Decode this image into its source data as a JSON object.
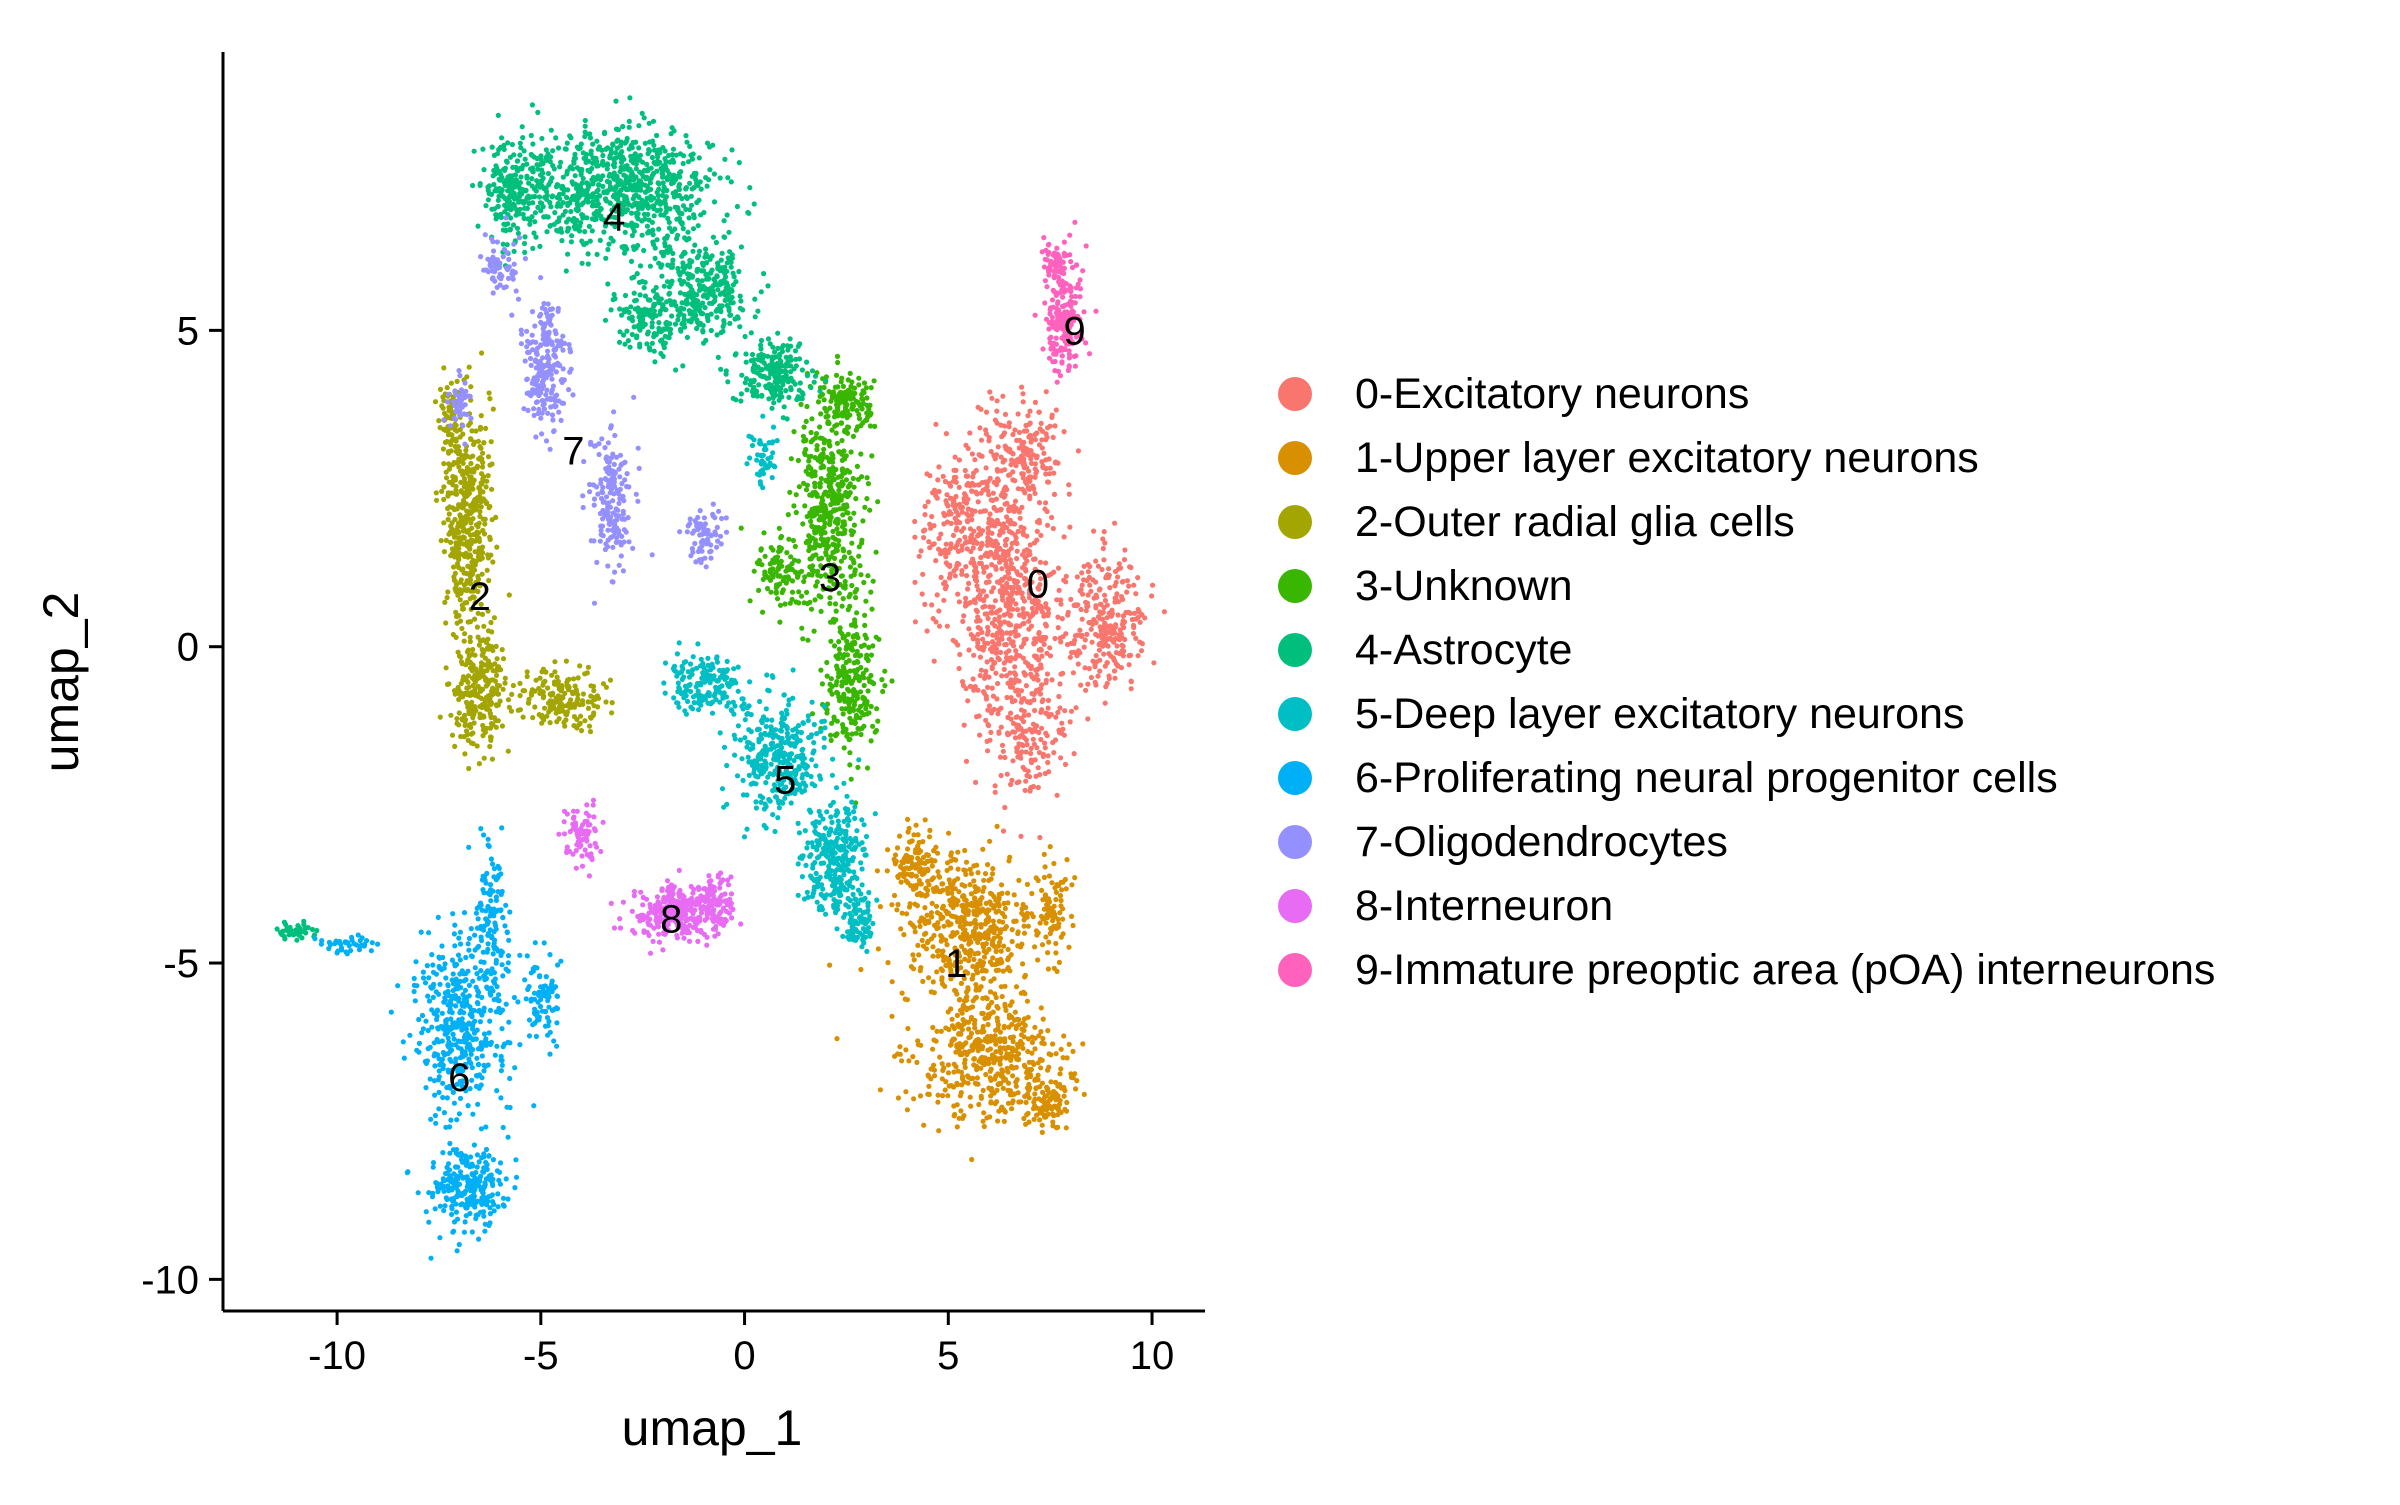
{
  "chart_data": {
    "type": "scatter",
    "title": "",
    "xlabel": "umap_1",
    "ylabel": "umap_2",
    "xlim": [
      -12.8,
      11.3
    ],
    "ylim": [
      -10.5,
      9.4
    ],
    "x_ticks": [
      -10,
      -5,
      0,
      5,
      10
    ],
    "x_tick_labels": [
      "-10",
      "-5",
      "0",
      "5",
      "10"
    ],
    "y_ticks": [
      -10,
      -5,
      0,
      5
    ],
    "y_tick_labels": [
      "-10",
      "-5",
      "0",
      "5"
    ],
    "grid": false,
    "legend_position": "right",
    "clusters": [
      {
        "id": "0",
        "label": "0-Excitatory neurons",
        "color": "#F8766D",
        "label_x": 7.2,
        "label_y": 1.0,
        "blobs": [
          [
            6.5,
            0.7,
            1.3,
            2.0,
            650
          ],
          [
            8.9,
            0.4,
            0.9,
            1.0,
            260
          ],
          [
            5.4,
            1.9,
            1.0,
            1.2,
            240
          ],
          [
            6.9,
            3.1,
            0.9,
            0.7,
            160
          ],
          [
            7.0,
            -1.5,
            0.8,
            0.9,
            130
          ]
        ]
      },
      {
        "id": "1",
        "label": "1-Upper layer excitatory neurons",
        "color": "#D89000",
        "label_x": 5.2,
        "label_y": -5.0,
        "blobs": [
          [
            5.5,
            -4.5,
            1.5,
            1.1,
            500
          ],
          [
            6.0,
            -6.5,
            1.6,
            0.9,
            450
          ],
          [
            4.2,
            -3.4,
            0.6,
            0.5,
            120
          ],
          [
            7.5,
            -7.2,
            0.5,
            0.4,
            100
          ],
          [
            7.5,
            -4.1,
            0.4,
            0.8,
            80
          ]
        ]
      },
      {
        "id": "2",
        "label": "2-Outer radial glia cells",
        "color": "#A3A500",
        "label_x": -6.5,
        "label_y": 0.8,
        "blobs": [
          [
            -6.8,
            2.0,
            0.5,
            1.6,
            420
          ],
          [
            -6.5,
            -0.7,
            0.6,
            0.8,
            260
          ],
          [
            -7.2,
            3.6,
            0.25,
            0.6,
            80
          ],
          [
            -4.5,
            -0.8,
            1.0,
            0.4,
            180
          ]
        ]
      },
      {
        "id": "3",
        "label": "3-Unknown",
        "color": "#39B600",
        "label_x": 2.1,
        "label_y": 1.1,
        "blobs": [
          [
            2.1,
            2.2,
            0.8,
            1.4,
            450
          ],
          [
            2.6,
            -0.6,
            0.6,
            1.0,
            240
          ],
          [
            2.5,
            3.9,
            0.6,
            0.4,
            130
          ],
          [
            0.9,
            1.2,
            0.6,
            0.5,
            100
          ]
        ]
      },
      {
        "id": "4",
        "label": "4-Astrocyte",
        "color": "#00BF7D",
        "label_x": -3.2,
        "label_y": 6.8,
        "blobs": [
          [
            -3.0,
            7.2,
            2.0,
            0.9,
            800
          ],
          [
            -5.7,
            7.2,
            0.7,
            0.8,
            220
          ],
          [
            -1.0,
            5.6,
            1.0,
            0.7,
            280
          ],
          [
            0.7,
            4.3,
            0.8,
            0.5,
            200
          ],
          [
            -2.3,
            5.2,
            0.8,
            0.5,
            150
          ],
          [
            -11.0,
            -4.5,
            0.5,
            0.12,
            40
          ]
        ]
      },
      {
        "id": "5",
        "label": "5-Deep layer excitatory neurons",
        "color": "#00BFC4",
        "label_x": 1.0,
        "label_y": -2.1,
        "blobs": [
          [
            0.8,
            -1.8,
            1.0,
            0.8,
            330
          ],
          [
            2.2,
            -3.3,
            0.7,
            0.8,
            280
          ],
          [
            -1.0,
            -0.6,
            0.9,
            0.4,
            170
          ],
          [
            2.8,
            -4.3,
            0.3,
            0.4,
            80
          ],
          [
            0.5,
            3.0,
            0.3,
            0.4,
            50
          ]
        ]
      },
      {
        "id": "6",
        "label": "6-Proliferating neural progenitor cells",
        "color": "#00B0F6",
        "label_x": -7.0,
        "label_y": -6.8,
        "blobs": [
          [
            -7.0,
            -6.0,
            1.0,
            1.3,
            420
          ],
          [
            -6.8,
            -8.6,
            0.9,
            0.6,
            260
          ],
          [
            -6.2,
            -4.3,
            0.4,
            1.1,
            130
          ],
          [
            -5.0,
            -5.6,
            0.4,
            0.6,
            80
          ],
          [
            -9.8,
            -4.7,
            0.7,
            0.15,
            40
          ]
        ]
      },
      {
        "id": "7",
        "label": "7-Oligodendrocytes",
        "color": "#9590FF",
        "label_x": -4.2,
        "label_y": 3.1,
        "blobs": [
          [
            -4.9,
            4.5,
            0.5,
            0.9,
            220
          ],
          [
            -3.3,
            2.3,
            0.5,
            1.0,
            170
          ],
          [
            -1.0,
            1.7,
            0.5,
            0.4,
            70
          ],
          [
            -6.0,
            6.0,
            0.4,
            0.5,
            60
          ],
          [
            -7.0,
            3.8,
            0.3,
            0.4,
            40
          ]
        ]
      },
      {
        "id": "8",
        "label": "8-Interneuron",
        "color": "#E76BF3",
        "label_x": -1.8,
        "label_y": -4.3,
        "blobs": [
          [
            -1.7,
            -4.2,
            1.0,
            0.4,
            300
          ],
          [
            -4.0,
            -3.0,
            0.4,
            0.5,
            80
          ],
          [
            -0.7,
            -4.0,
            0.4,
            0.4,
            80
          ]
        ]
      },
      {
        "id": "9",
        "label": "9-Immature preoptic area (pOA) interneurons",
        "color": "#FF62BC",
        "label_x": 8.1,
        "label_y": 5.0,
        "blobs": [
          [
            7.8,
            5.2,
            0.4,
            0.9,
            200
          ],
          [
            7.6,
            6.1,
            0.3,
            0.3,
            50
          ]
        ]
      }
    ]
  }
}
